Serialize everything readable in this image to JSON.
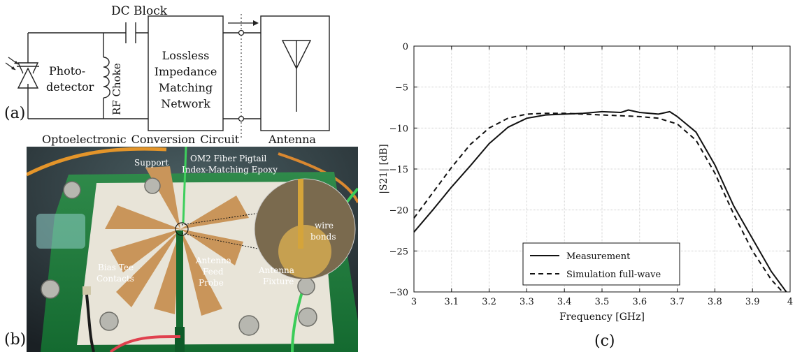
{
  "panel_labels": {
    "a": "(a)",
    "b": "(b)",
    "c": "(c)"
  },
  "schematic": {
    "dc_block": "DC Block",
    "photodetector_line1": "Photo-",
    "photodetector_line2": "detector",
    "rf_choke": "RF Choke",
    "matching_line1": "Lossless",
    "matching_line2": "Impedance",
    "matching_line3": "Matching",
    "matching_line4": "Network",
    "antenna": "Antenna",
    "conversion_circuit": "Optoelectronic Conversion Circuit"
  },
  "photo": {
    "support": "Support",
    "fiber_pigtail": "OM2 Fiber Pigtail",
    "epoxy": "Index-Matching Epoxy",
    "wire": "wire",
    "bonds": "bonds",
    "bias_tee_1": "Bias Tee",
    "bias_tee_2": "Contacts",
    "antenna_feed_1": "Antenna",
    "antenna_feed_2": "Feed",
    "antenna_feed_3": "Probe",
    "antenna_fixture_1": "Antenna",
    "antenna_fixture_2": "Fixture"
  },
  "chart_data": {
    "type": "line",
    "xlabel": "Frequency [GHz]",
    "ylabel": "|S21| [dB]",
    "xlim": [
      3,
      4
    ],
    "ylim": [
      -30,
      0
    ],
    "xticks": [
      "3",
      "3.1",
      "3.2",
      "3.3",
      "3.4",
      "3.5",
      "3.6",
      "3.7",
      "3.8",
      "3.9",
      "4"
    ],
    "yticks": [
      "0",
      "−5",
      "−10",
      "−15",
      "−20",
      "−25",
      "−30"
    ],
    "grid": true,
    "legend_position": "bottom-center",
    "series": [
      {
        "name": "Measurement",
        "style": "solid",
        "color": "#111111",
        "x": [
          3.0,
          3.05,
          3.1,
          3.15,
          3.2,
          3.25,
          3.3,
          3.35,
          3.4,
          3.45,
          3.5,
          3.55,
          3.57,
          3.6,
          3.65,
          3.68,
          3.7,
          3.75,
          3.8,
          3.85,
          3.9,
          3.95,
          3.99
        ],
        "y": [
          -22.7,
          -20.0,
          -17.2,
          -14.6,
          -11.9,
          -9.9,
          -8.8,
          -8.4,
          -8.3,
          -8.2,
          -8.0,
          -8.1,
          -7.8,
          -8.1,
          -8.3,
          -8.0,
          -8.6,
          -10.5,
          -14.5,
          -19.5,
          -23.5,
          -27.5,
          -30.0
        ]
      },
      {
        "name": "Simulation full-wave",
        "style": "dashed",
        "color": "#111111",
        "x": [
          3.0,
          3.05,
          3.1,
          3.15,
          3.2,
          3.25,
          3.3,
          3.35,
          3.4,
          3.45,
          3.5,
          3.55,
          3.6,
          3.65,
          3.7,
          3.75,
          3.8,
          3.85,
          3.9,
          3.95,
          3.98
        ],
        "y": [
          -21.0,
          -17.9,
          -14.8,
          -12.0,
          -10.0,
          -8.8,
          -8.3,
          -8.2,
          -8.2,
          -8.3,
          -8.4,
          -8.5,
          -8.6,
          -8.8,
          -9.5,
          -11.5,
          -15.5,
          -20.5,
          -25.0,
          -28.5,
          -30.0
        ]
      }
    ]
  }
}
